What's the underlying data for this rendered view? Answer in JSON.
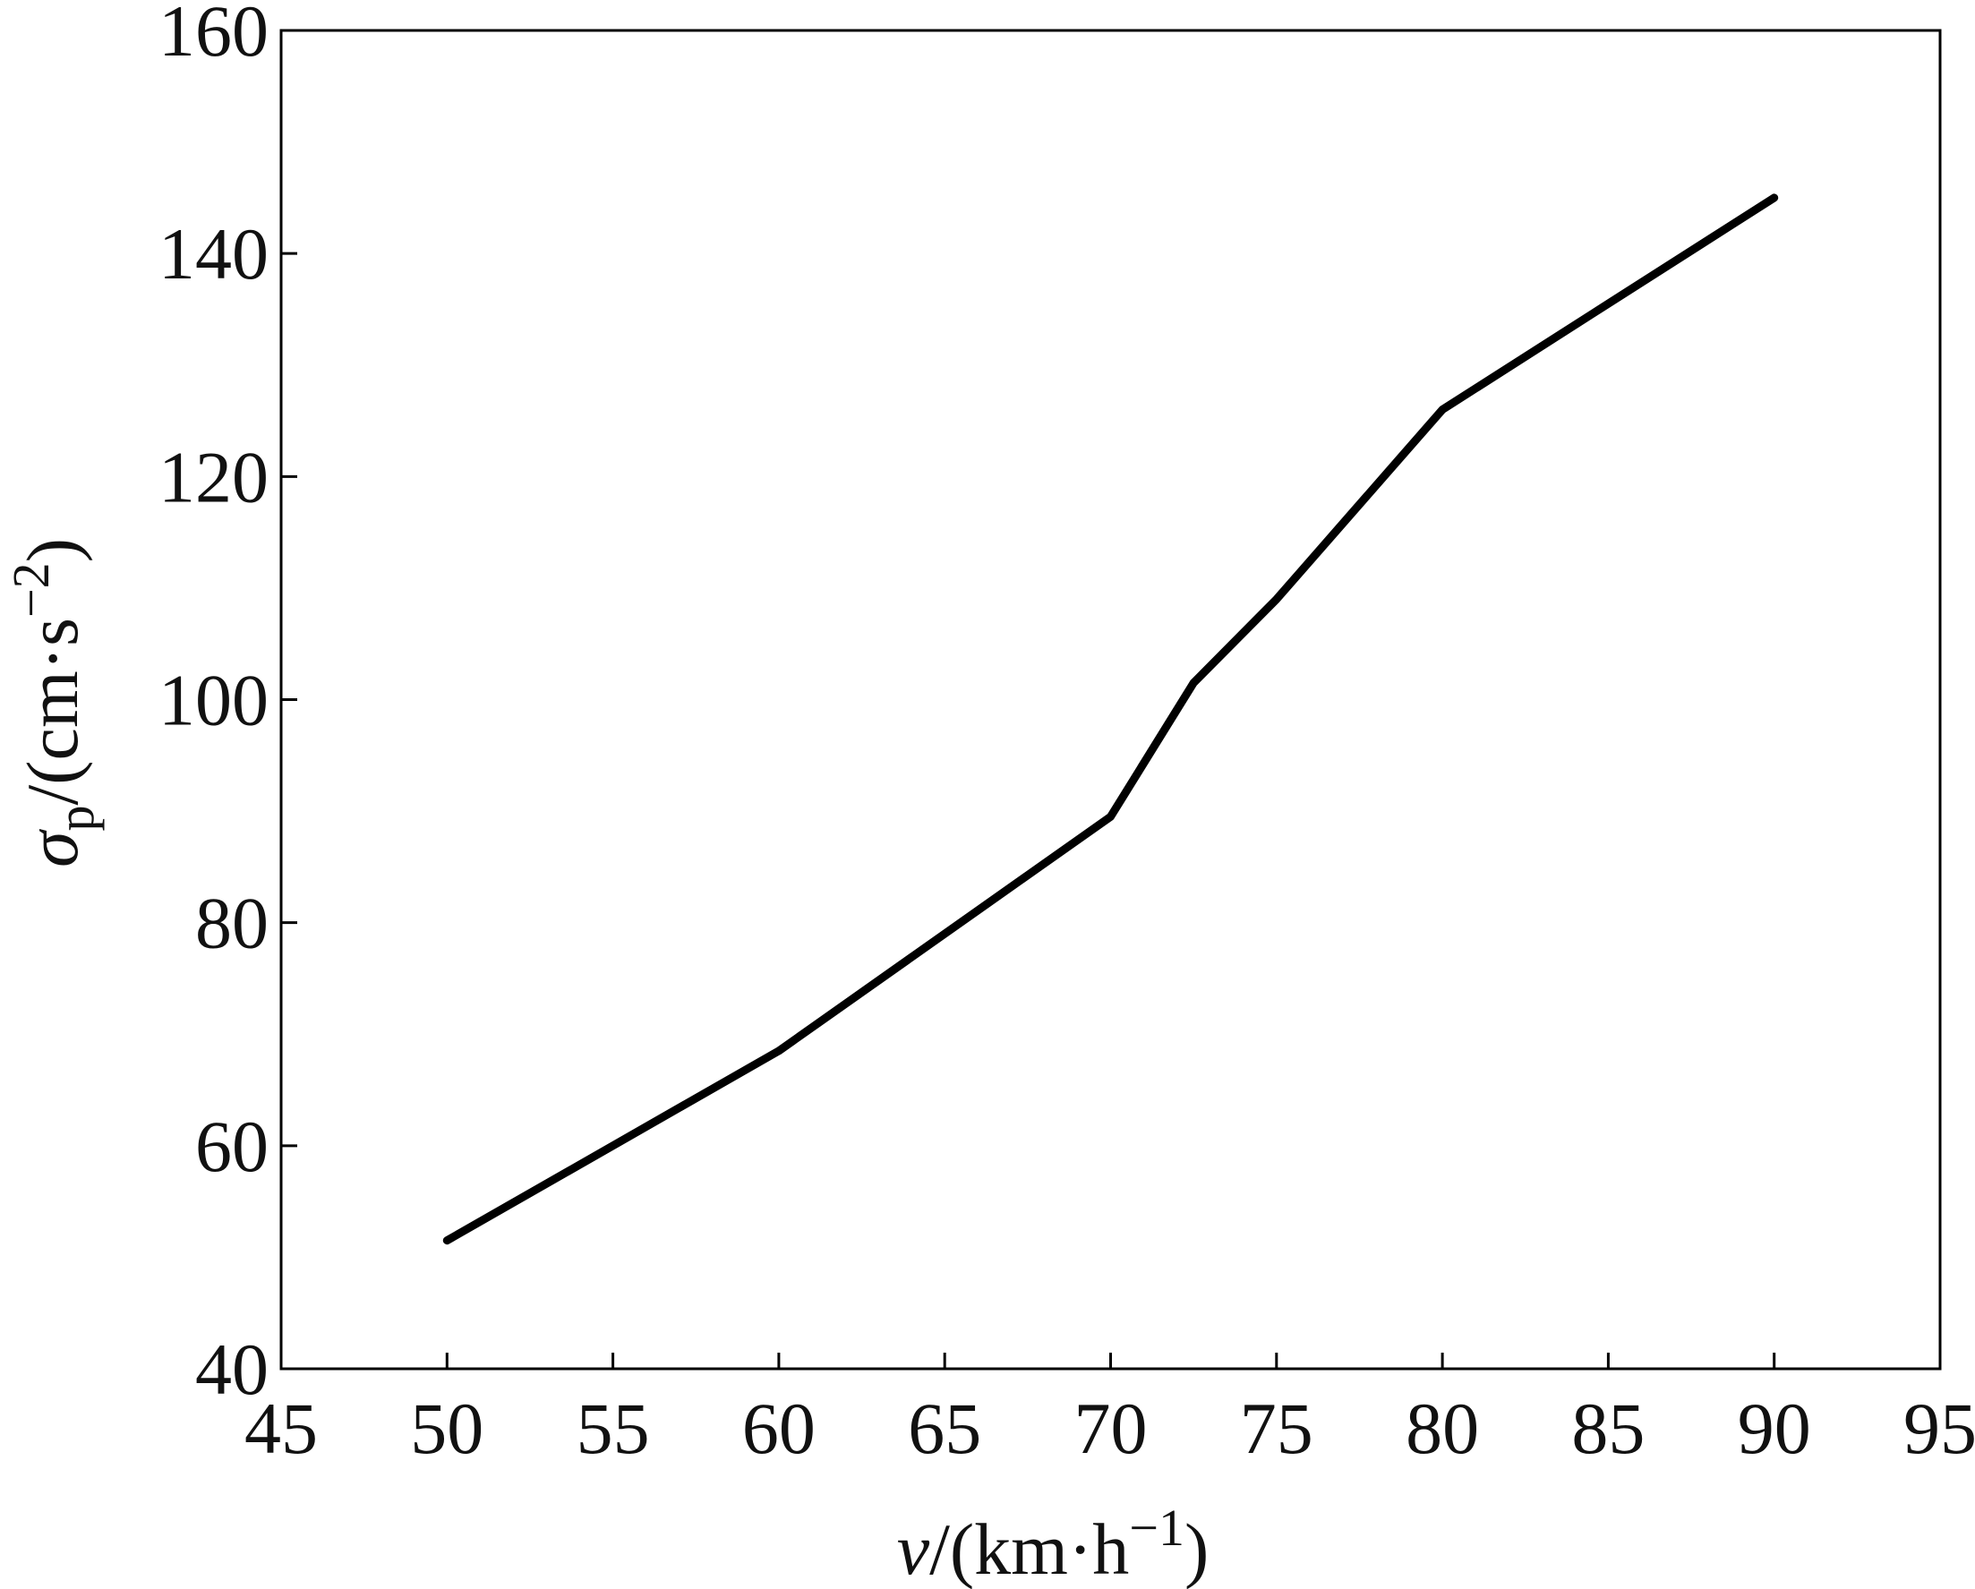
{
  "chart_data": {
    "type": "line",
    "title": "",
    "xlabel": {
      "symbol": "v",
      "unit_prefix": "/(km·h",
      "unit_exponent": "−1",
      "unit_suffix": ")"
    },
    "ylabel": {
      "symbol": "σ",
      "subscript": "p",
      "unit_prefix": "/(cm·s",
      "unit_exponent": "−2",
      "unit_suffix": ")"
    },
    "xlim": [
      45,
      95
    ],
    "ylim": [
      40,
      160
    ],
    "xticks": [
      45,
      50,
      55,
      60,
      65,
      70,
      75,
      80,
      85,
      90,
      95
    ],
    "yticks": [
      40,
      60,
      80,
      100,
      120,
      140,
      160
    ],
    "grid": false,
    "legend": "none",
    "series": [
      {
        "color": "#000000",
        "x": [
          50,
          60,
          70,
          72.5,
          75,
          80,
          85,
          90
        ],
        "y": [
          51.5,
          68.5,
          89.5,
          101.5,
          109,
          126,
          135.5,
          145
        ]
      }
    ]
  }
}
